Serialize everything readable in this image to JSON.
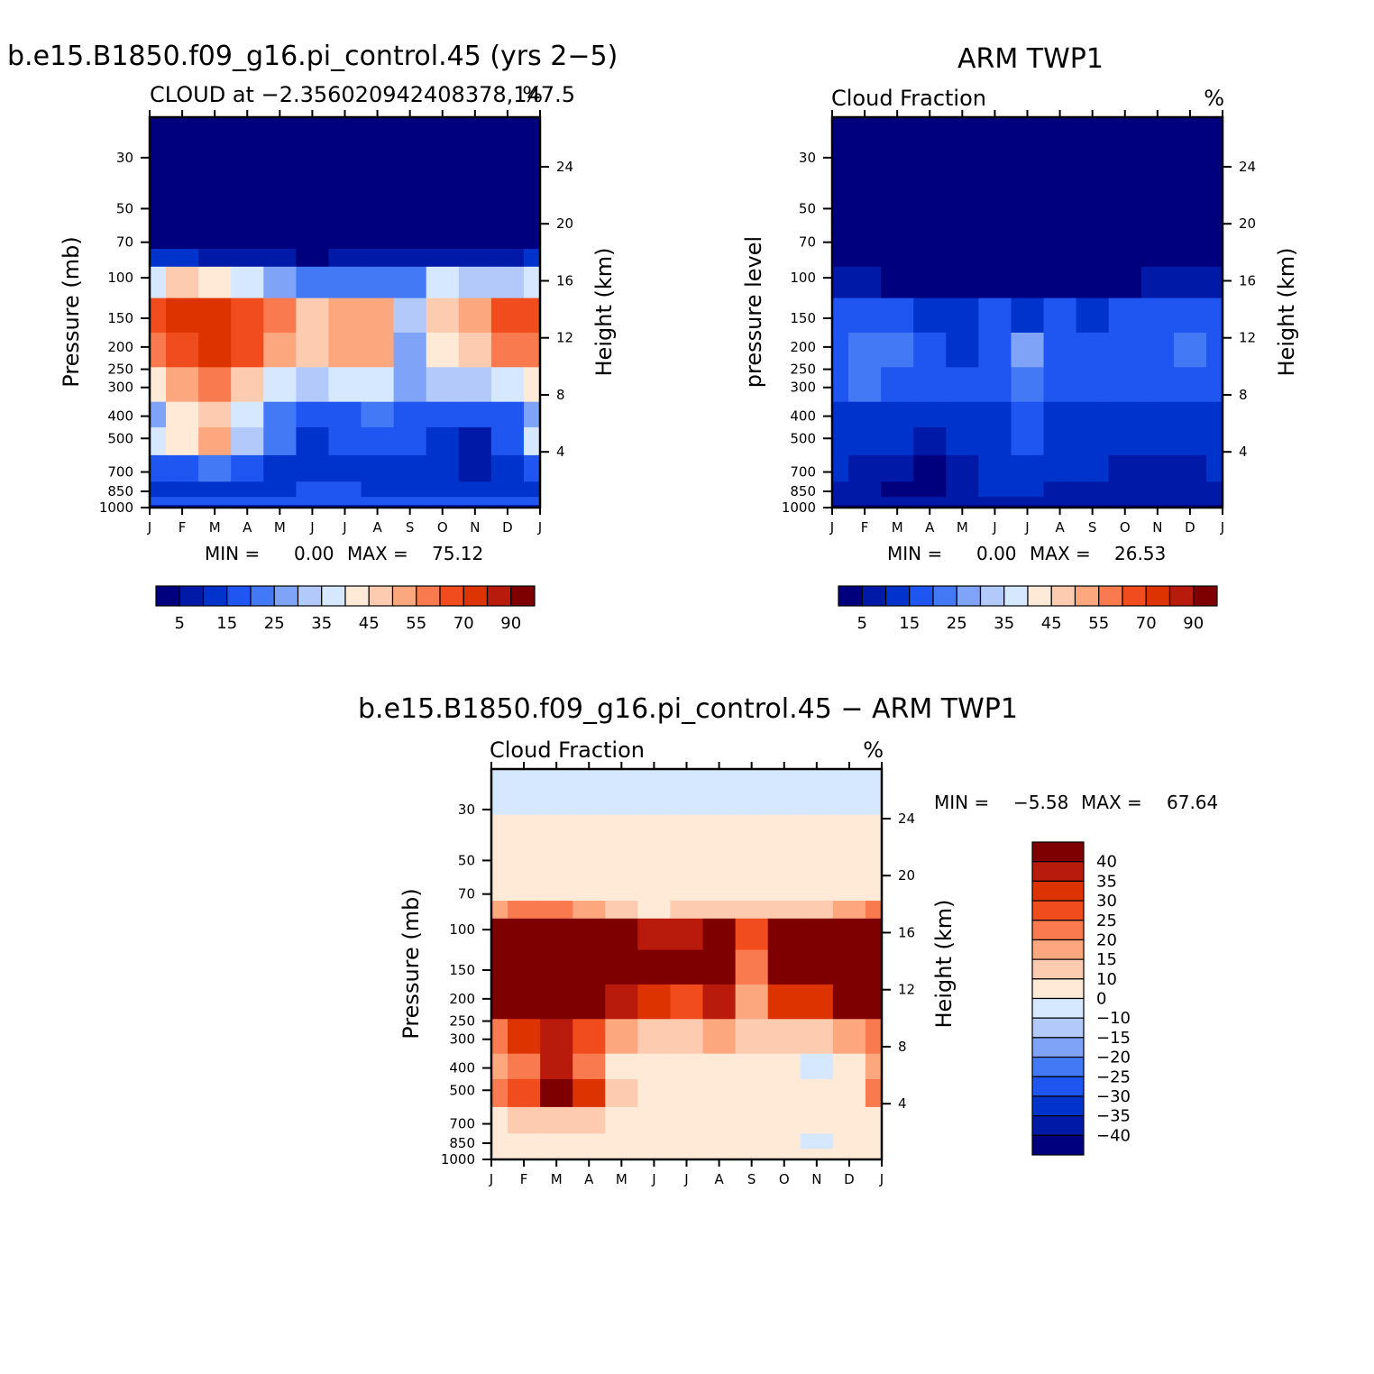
{
  "figure": {
    "panel_1": {
      "title": "b.e15.B1850.f09_g16.pi_control.45 (yrs 2-5)",
      "subtitle_left": "CLOUD at -2.356020942408378,147.5",
      "subtitle_right": "%",
      "ylabel": "Pressure (mb)",
      "y2label": "Height (km)",
      "min_label": "MIN =",
      "min_value": "0.00",
      "max_label": "MAX =",
      "max_value": "75.12"
    },
    "panel_2": {
      "title": "ARM TWP1",
      "subtitle_left": "Cloud Fraction",
      "subtitle_right": "%",
      "ylabel": "pressure level",
      "y2label": "Height (km)",
      "min_label": "MIN =",
      "min_value": "0.00",
      "max_label": "MAX =",
      "max_value": "26.53"
    },
    "panel_3": {
      "title": "b.e15.B1850.f09_g16.pi_control.45 - ARM TWP1",
      "subtitle_left": "Cloud Fraction",
      "subtitle_right": "%",
      "ylabel": "Pressure (mb)",
      "y2label": "Height (km)",
      "min_label": "MIN =",
      "min_value": "-5.58",
      "max_label": "MAX =",
      "max_value": "67.64"
    }
  },
  "chart_data": [
    {
      "type": "heatmap",
      "title": "b.e15.B1850.f09_g16.pi_control.45 (yrs 2-5)",
      "subtitle": "CLOUD at -2.356020942408378,147.5",
      "units": "%",
      "xlabel": "",
      "ylabel": "Pressure (mb)",
      "y2label": "Height (km)",
      "x_tick_labels": [
        "J",
        "F",
        "M",
        "A",
        "M",
        "J",
        "J",
        "A",
        "S",
        "O",
        "N",
        "D",
        "J"
      ],
      "y_tick_values": [
        30,
        50,
        70,
        100,
        150,
        200,
        250,
        300,
        400,
        500,
        700,
        850,
        1000
      ],
      "y2_tick_values": [
        24,
        20,
        16,
        12,
        8,
        4
      ],
      "ylim": [
        1000,
        20
      ],
      "y_scale": "log",
      "colorbar_labels": [
        "5",
        "15",
        "25",
        "35",
        "45",
        "55",
        "70",
        "90"
      ],
      "colorbar_levels": [
        5,
        10,
        15,
        20,
        25,
        30,
        35,
        40,
        45,
        50,
        55,
        60,
        70,
        80,
        90
      ],
      "colorbar_colors": [
        "#00007f",
        "#0019a6",
        "#0033cc",
        "#1f55f0",
        "#4479f5",
        "#7ea3f7",
        "#b2c9fa",
        "#d6e8ff",
        "#ffe9d7",
        "#fdcbb0",
        "#fca77e",
        "#f97a4e",
        "#f04c1e",
        "#dc3300",
        "#b81a0c",
        "#7f0000"
      ],
      "data_range": {
        "min": 0.0,
        "max": 75.12
      },
      "levels_hpa": [
        20,
        50,
        70,
        80,
        100,
        150,
        200,
        300,
        400,
        500,
        700,
        850,
        950,
        1000
      ],
      "values": [
        [
          0,
          0,
          0,
          0,
          0,
          0,
          0,
          0,
          0,
          0,
          0,
          0,
          0
        ],
        [
          0,
          0,
          0,
          0,
          0,
          0,
          0,
          0,
          0,
          0,
          0,
          0,
          0
        ],
        [
          1,
          1,
          1,
          1,
          1,
          1,
          1,
          1,
          1,
          1,
          1,
          1,
          1
        ],
        [
          10,
          10,
          8,
          6,
          6,
          3,
          5,
          5,
          7,
          7,
          6,
          8,
          10
        ],
        [
          35,
          45,
          40,
          35,
          25,
          20,
          22,
          22,
          22,
          35,
          30,
          30,
          35
        ],
        [
          60,
          72,
          75,
          65,
          55,
          45,
          50,
          50,
          30,
          45,
          50,
          65,
          60
        ],
        [
          55,
          65,
          70,
          60,
          50,
          45,
          50,
          52,
          28,
          40,
          45,
          55,
          55
        ],
        [
          40,
          50,
          55,
          45,
          35,
          30,
          35,
          35,
          25,
          30,
          30,
          35,
          40
        ],
        [
          25,
          40,
          48,
          35,
          20,
          15,
          18,
          20,
          18,
          15,
          15,
          18,
          25
        ],
        [
          35,
          40,
          50,
          30,
          20,
          10,
          18,
          15,
          15,
          10,
          8,
          15,
          35
        ],
        [
          15,
          15,
          20,
          15,
          12,
          12,
          12,
          12,
          12,
          12,
          8,
          12,
          15
        ],
        [
          12,
          12,
          12,
          12,
          12,
          15,
          15,
          12,
          12,
          12,
          10,
          12,
          12
        ],
        [
          15,
          15,
          15,
          15,
          15,
          15,
          15,
          15,
          15,
          15,
          15,
          15,
          15
        ],
        [
          5,
          5,
          5,
          5,
          5,
          5,
          5,
          5,
          5,
          5,
          5,
          5,
          5
        ]
      ]
    },
    {
      "type": "heatmap",
      "title": "ARM TWP1",
      "subtitle": "Cloud Fraction",
      "units": "%",
      "xlabel": "",
      "ylabel": "pressure level",
      "y2label": "Height (km)",
      "x_tick_labels": [
        "J",
        "F",
        "M",
        "A",
        "M",
        "J",
        "J",
        "A",
        "S",
        "O",
        "N",
        "D",
        "J"
      ],
      "y_tick_values": [
        30,
        50,
        70,
        100,
        150,
        200,
        250,
        300,
        400,
        500,
        700,
        850,
        1000
      ],
      "y2_tick_values": [
        24,
        20,
        16,
        12,
        8,
        4
      ],
      "ylim": [
        1000,
        20
      ],
      "y_scale": "log",
      "colorbar_labels": [
        "5",
        "15",
        "25",
        "35",
        "45",
        "55",
        "70",
        "90"
      ],
      "colorbar_levels": [
        5,
        10,
        15,
        20,
        25,
        30,
        35,
        40,
        45,
        50,
        55,
        60,
        70,
        80,
        90
      ],
      "colorbar_colors": [
        "#00007f",
        "#0019a6",
        "#0033cc",
        "#1f55f0",
        "#4479f5",
        "#7ea3f7",
        "#b2c9fa",
        "#d6e8ff",
        "#ffe9d7",
        "#fdcbb0",
        "#fca77e",
        "#f97a4e",
        "#f04c1e",
        "#dc3300",
        "#b81a0c",
        "#7f0000"
      ],
      "data_range": {
        "min": 0.0,
        "max": 26.53
      },
      "levels_hpa": [
        20,
        50,
        70,
        80,
        100,
        150,
        200,
        300,
        400,
        500,
        700,
        850,
        950,
        1000
      ],
      "values": [
        [
          0,
          0,
          0,
          0,
          0,
          0,
          0,
          0,
          0,
          0,
          0,
          0,
          0
        ],
        [
          0,
          0,
          0,
          0,
          0,
          0,
          0,
          0,
          0,
          0,
          0,
          0,
          0
        ],
        [
          0,
          0,
          0,
          0,
          0,
          0,
          0,
          0,
          0,
          0,
          0,
          0,
          0
        ],
        [
          1,
          1,
          1,
          1,
          1,
          1,
          1,
          1,
          1,
          1,
          1,
          1,
          1
        ],
        [
          5,
          5,
          4,
          3,
          2,
          3,
          2,
          2,
          2,
          3,
          5,
          6,
          5
        ],
        [
          17,
          18,
          16,
          12,
          12,
          15,
          14,
          15,
          14,
          15,
          15,
          16,
          15
        ],
        [
          17,
          22,
          20,
          15,
          14,
          15,
          25,
          17,
          16,
          16,
          16,
          22,
          18
        ],
        [
          16,
          20,
          18,
          15,
          17,
          15,
          22,
          16,
          16,
          16,
          17,
          18,
          17
        ],
        [
          12,
          14,
          12,
          10,
          14,
          12,
          16,
          13,
          12,
          12,
          12,
          13,
          12
        ],
        [
          12,
          12,
          10,
          8,
          10,
          14,
          17,
          14,
          12,
          12,
          12,
          12,
          12
        ],
        [
          10,
          8,
          6,
          4,
          7,
          12,
          14,
          10,
          10,
          7,
          6,
          8,
          10
        ],
        [
          8,
          6,
          4,
          3,
          6,
          10,
          12,
          8,
          8,
          6,
          5,
          6,
          8
        ],
        [
          5,
          5,
          5,
          5,
          5,
          5,
          5,
          5,
          5,
          5,
          5,
          5,
          5
        ],
        [
          3,
          3,
          3,
          3,
          3,
          3,
          3,
          3,
          3,
          3,
          3,
          3,
          3
        ]
      ]
    },
    {
      "type": "heatmap",
      "title": "b.e15.B1850.f09_g16.pi_control.45 - ARM TWP1",
      "subtitle": "Cloud Fraction",
      "units": "%",
      "xlabel": "",
      "ylabel": "Pressure (mb)",
      "y2label": "Height (km)",
      "x_tick_labels": [
        "J",
        "F",
        "M",
        "A",
        "M",
        "J",
        "J",
        "A",
        "S",
        "O",
        "N",
        "D",
        "J"
      ],
      "y_tick_values": [
        30,
        50,
        70,
        100,
        150,
        200,
        250,
        300,
        400,
        500,
        700,
        850,
        1000
      ],
      "y2_tick_values": [
        24,
        20,
        16,
        12,
        8,
        4
      ],
      "ylim": [
        1000,
        20
      ],
      "y_scale": "log",
      "colorbar_labels": [
        "40",
        "35",
        "30",
        "25",
        "20",
        "15",
        "10",
        "0",
        "-10",
        "-15",
        "-20",
        "-25",
        "-30",
        "-35",
        "-40"
      ],
      "colorbar_levels": [
        -40,
        -35,
        -30,
        -25,
        -20,
        -15,
        -10,
        0,
        10,
        15,
        20,
        25,
        30,
        35,
        40
      ],
      "colorbar_colors": [
        "#00007f",
        "#0019a6",
        "#0033cc",
        "#1f55f0",
        "#4479f5",
        "#7ea3f7",
        "#b2c9fa",
        "#d6e8ff",
        "#ffe9d7",
        "#fdcbb0",
        "#fca77e",
        "#f97a4e",
        "#f04c1e",
        "#dc3300",
        "#b81a0c",
        "#7f0000"
      ],
      "data_range": {
        "min": -5.58,
        "max": 67.64
      },
      "levels_hpa": [
        20,
        50,
        70,
        80,
        100,
        150,
        200,
        300,
        400,
        500,
        700,
        850,
        950,
        1000
      ],
      "values": [
        [
          -2,
          -2,
          -2,
          -2,
          -2,
          -2,
          -2,
          -2,
          -2,
          -2,
          -2,
          -2,
          -2
        ],
        [
          2,
          2,
          2,
          2,
          2,
          2,
          2,
          2,
          2,
          2,
          2,
          2,
          2
        ],
        [
          3,
          3,
          3,
          3,
          3,
          3,
          3,
          3,
          3,
          3,
          3,
          3,
          3
        ],
        [
          18,
          20,
          20,
          16,
          14,
          6,
          10,
          10,
          12,
          14,
          14,
          18,
          22
        ],
        [
          45,
          50,
          55,
          50,
          45,
          35,
          38,
          40,
          28,
          40,
          45,
          45,
          42
        ],
        [
          45,
          55,
          60,
          55,
          48,
          40,
          42,
          42,
          22,
          42,
          42,
          48,
          45
        ],
        [
          42,
          48,
          55,
          48,
          38,
          32,
          28,
          35,
          18,
          30,
          32,
          40,
          42
        ],
        [
          20,
          30,
          38,
          28,
          18,
          12,
          12,
          15,
          12,
          12,
          10,
          16,
          20
        ],
        [
          18,
          24,
          36,
          22,
          8,
          6,
          6,
          7,
          6,
          5,
          -2,
          6,
          16
        ],
        [
          20,
          26,
          45,
          32,
          12,
          5,
          8,
          8,
          6,
          5,
          5,
          7,
          20
        ],
        [
          8,
          10,
          14,
          10,
          6,
          4,
          4,
          4,
          4,
          4,
          3,
          4,
          8
        ],
        [
          4,
          4,
          5,
          4,
          4,
          4,
          4,
          4,
          4,
          4,
          -2,
          4,
          4
        ],
        [
          3,
          3,
          3,
          3,
          3,
          3,
          3,
          3,
          3,
          3,
          3,
          3,
          3
        ],
        [
          2,
          2,
          2,
          2,
          2,
          2,
          2,
          2,
          2,
          2,
          2,
          2,
          2
        ]
      ]
    }
  ]
}
